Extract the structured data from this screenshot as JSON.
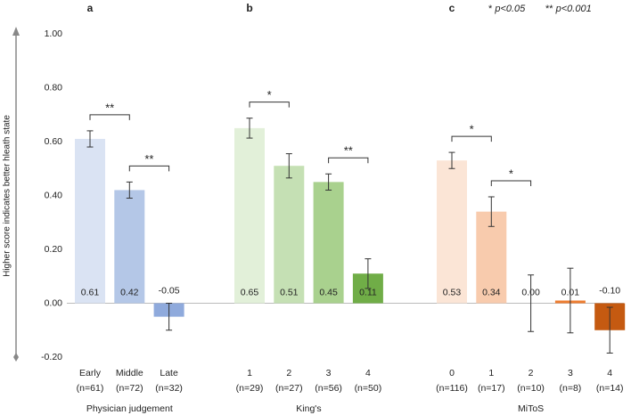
{
  "chart_data": {
    "type": "bar",
    "y_axis_label": "Higher score indicates better hleath state",
    "ylim": [
      -0.2,
      1.0
    ],
    "yticks": [
      {
        "value": -0.2,
        "label": "-0.20"
      },
      {
        "value": 0,
        "label": "0.00"
      },
      {
        "value": 0.2,
        "label": "0.20"
      },
      {
        "value": 0.4,
        "label": "0.40"
      },
      {
        "value": 0.6,
        "label": "0.60"
      },
      {
        "value": 0.8,
        "label": "0.80"
      },
      {
        "value": 1.0,
        "label": "1.00"
      }
    ],
    "legend": [
      {
        "symbol": "*",
        "text": "p<0.05"
      },
      {
        "symbol": "**",
        "text": "p<0.001"
      }
    ],
    "groups": [
      {
        "panel": "a",
        "name": "Physician judgement",
        "categories": [
          "Early",
          "Middle",
          "Late"
        ],
        "category_counts": [
          "(n=61)",
          "(n=72)",
          "(n=32)"
        ],
        "values": [
          0.61,
          0.42,
          -0.05
        ],
        "value_labels": [
          "0.61",
          "0.42",
          "-0.05"
        ],
        "errors": [
          0.03,
          0.03,
          0.05
        ],
        "colors": [
          "#dae3f3",
          "#b4c7e7",
          "#8faadc"
        ],
        "significance": [
          {
            "pair": [
              0,
              1
            ],
            "label": "**"
          },
          {
            "pair": [
              1,
              2
            ],
            "label": "**"
          }
        ]
      },
      {
        "panel": "b",
        "name": "King's",
        "categories": [
          "1",
          "2",
          "3",
          "4"
        ],
        "category_counts": [
          "(n=29)",
          "(n=27)",
          "(n=56)",
          "(n=50)"
        ],
        "values": [
          0.65,
          0.51,
          0.45,
          0.11
        ],
        "value_labels": [
          "0.65",
          "0.51",
          "0.45",
          "0.11"
        ],
        "errors": [
          0.037,
          0.045,
          0.03,
          0.055
        ],
        "colors": [
          "#e2f0d9",
          "#c5e0b4",
          "#a9d18e",
          "#70ad47"
        ],
        "significance": [
          {
            "pair": [
              0,
              1
            ],
            "label": "*"
          },
          {
            "pair": [
              2,
              3
            ],
            "label": "**"
          }
        ]
      },
      {
        "panel": "c",
        "name": "MiToS",
        "categories": [
          "0",
          "1",
          "2",
          "3",
          "4"
        ],
        "category_counts": [
          "(n=116)",
          "(n=17)",
          "(n=10)",
          "(n=8)",
          "(n=14)"
        ],
        "values": [
          0.53,
          0.34,
          0.0,
          0.01,
          -0.1
        ],
        "value_labels": [
          "0.53",
          "0.34",
          "0.00",
          "0.01",
          "-0.10"
        ],
        "errors": [
          0.03,
          0.055,
          0.105,
          0.12,
          0.085
        ],
        "colors": [
          "#fbe5d6",
          "#f8cbad",
          "#f4b183",
          "#ed7d31",
          "#c55a11"
        ],
        "significance": [
          {
            "pair": [
              0,
              1
            ],
            "label": "*"
          },
          {
            "pair": [
              1,
              2
            ],
            "label": "*"
          }
        ]
      }
    ]
  }
}
